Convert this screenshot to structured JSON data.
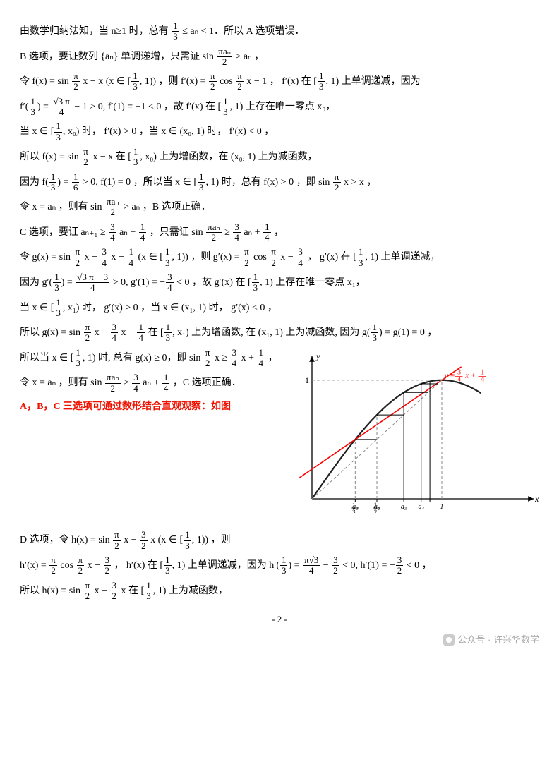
{
  "paragraphs": {
    "p1a": "由数学归纳法知，当 n≥1 时，总有 ",
    "p1b": " ≤ aₙ < 1．所以 A 选项错误．",
    "p2a": "B 选项，要证数列 {aₙ} 单调递增，只需证 sin ",
    "p2b": " > aₙ ，",
    "p3a": "令 f(x) = sin ",
    "p3b": " x − x (x ∈ [",
    "p3c": ", 1)) ，则 f′(x) = ",
    "p3d": " cos ",
    "p3e": " x − 1 ， f′(x) 在 [",
    "p3f": ", 1) 上单调递减，因为",
    "p4a": "f′(",
    "p4b": ") = ",
    "p4c": " − 1 > 0, f′(1) = −1 < 0 ，故 f′(x) 在 [",
    "p4d": ", 1) 上存在唯一零点 x₀，",
    "p5a": "当 x ∈ [",
    "p5b": ", x₀) 时， f′(x) > 0 ，当 x ∈ (x₀, 1) 时， f′(x) < 0 ，",
    "p6a": "所以 f(x) = sin ",
    "p6b": " x − x 在 [",
    "p6c": ", x₀) 上为增函数，在 (x₀, 1) 上为减函数，",
    "p7a": "因为 f(",
    "p7b": ") = ",
    "p7c": " > 0, f(1) = 0 ，所以当 x ∈ [",
    "p7d": ", 1) 时，总有 f(x) > 0 ，即 sin ",
    "p7e": " x > x ，",
    "p8a": "令 x = aₙ ，则有 sin ",
    "p8b": " > aₙ ，B 选项正确．",
    "p9a": "C 选项，要证 aₙ₊₁ ≥ ",
    "p9b": " aₙ + ",
    "p9c": " ，只需证 sin ",
    "p9d": " ≥ ",
    "p9e": " aₙ + ",
    "p9f": " ，",
    "p10a": "令 g(x) = sin ",
    "p10b": " x − ",
    "p10c": " x − ",
    "p10d": " (x ∈ [",
    "p10e": ", 1)) ，则 g′(x) = ",
    "p10f": " cos ",
    "p10g": " x − ",
    "p10h": " ， g′(x) 在 [",
    "p10i": ", 1) 上单调递减，",
    "p11a": "因为 g′(",
    "p11b": ") = ",
    "p11c": " > 0, g′(1) = −",
    "p11d": " < 0 ，故 g′(x) 在 [",
    "p11e": ", 1) 上存在唯一零点 x₁，",
    "p12a": "当 x ∈ [",
    "p12b": ", x₁) 时， g′(x) > 0 ，当 x ∈ (x₁, 1) 时， g′(x) < 0 ，",
    "p13a": "所以 g(x) = sin ",
    "p13b": " x − ",
    "p13c": " x − ",
    "p13d": " 在 [",
    "p13e": ", x₁) 上为增函数, 在 (x₁, 1) 上为减函数, 因为 g(",
    "p13f": ") = g(1) = 0 ，",
    "p14a": "所以当 x ∈ [",
    "p14b": ", 1) 时, 总有 g(x) ≥ 0，即 sin ",
    "p14c": " x ≥ ",
    "p14d": " x + ",
    "p14e": " ，",
    "p15a": "令 x = aₙ ，则有 sin ",
    "p15b": " ≥ ",
    "p15c": " aₙ + ",
    "p15d": " ，C 选项正确．",
    "p16": "A，B，C 三选项可通过数形结合直观观察：如图",
    "p17a": "D 选项，令 h(x) = sin ",
    "p17b": " x − ",
    "p17c": " x (x ∈ [",
    "p17d": ", 1)) ，则",
    "p18a": "h′(x) = ",
    "p18b": " cos ",
    "p18c": " x − ",
    "p18d": " ， h′(x) 在 [",
    "p18e": ", 1) 上单调递减，因为 h′(",
    "p18f": ") = ",
    "p18g": " − ",
    "p18h": " < 0, h′(1) = −",
    "p18i": " < 0 ，",
    "p19a": "所以 h(x) = sin ",
    "p19b": " x − ",
    "p19c": " x 在 [",
    "p19d": ", 1) 上为减函数，"
  },
  "fracs": {
    "one_third": {
      "n": "1",
      "d": "3"
    },
    "pi_an_2": {
      "n": "πaₙ",
      "d": "2"
    },
    "pi_2": {
      "n": "π",
      "d": "2"
    },
    "sqrt3pi_4": {
      "n": "√3 π",
      "d": "4"
    },
    "one_sixth": {
      "n": "1",
      "d": "6"
    },
    "three_fourth": {
      "n": "3",
      "d": "4"
    },
    "one_fourth": {
      "n": "1",
      "d": "4"
    },
    "sqrt3pi_m3_4": {
      "n": "√3 π − 3",
      "d": "4"
    },
    "three_half": {
      "n": "3",
      "d": "2"
    },
    "pi_sqrt3_4": {
      "n": "π√3",
      "d": "4"
    }
  },
  "figure": {
    "line_label": "y = (3/4)x + 1/4",
    "y_tick": "1",
    "x_axis_label": "x",
    "y_axis_label": "y",
    "x_ticks": [
      "1/3",
      "a₁",
      "1/2",
      "a₂",
      "a₃",
      "a₄",
      "1"
    ],
    "curve_color": "#222222",
    "line_color": "#ff0000",
    "dash_color": "#888888",
    "axis_color": "#000000",
    "line_y_intercept": 0.25,
    "line_slope": 0.75,
    "a_values": [
      0.3333,
      0.5,
      0.7071,
      0.8409,
      0.9081
    ],
    "xlim": [
      0,
      1.25
    ],
    "ylim": [
      0,
      1.1
    ]
  },
  "pageno": "- 2 -",
  "footer": "公众号 · 许兴华数学"
}
